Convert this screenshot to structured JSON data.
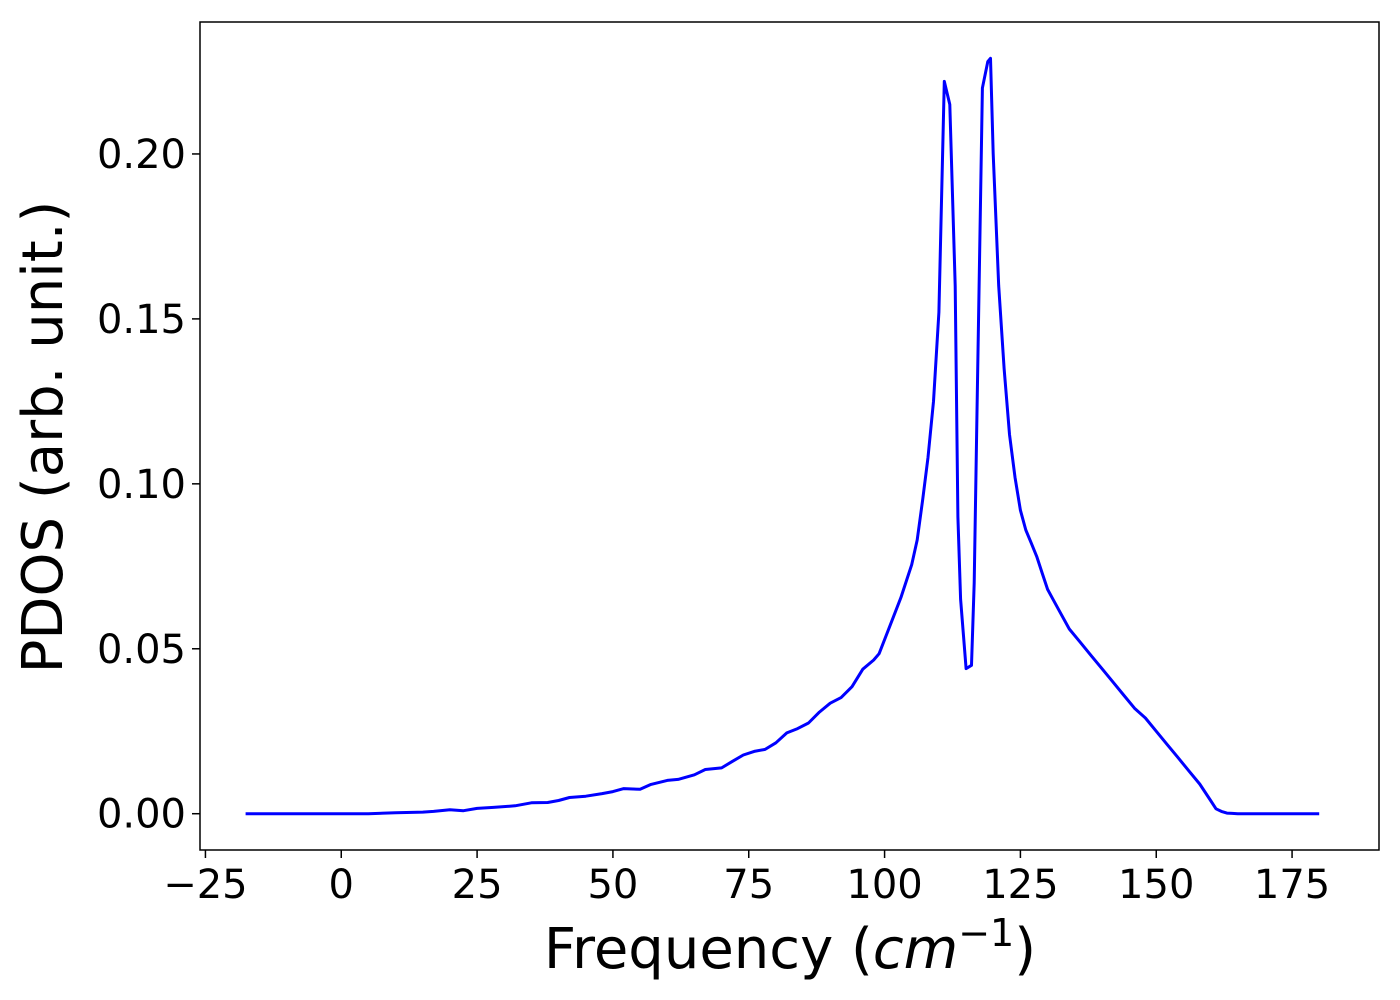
{
  "chart_data": {
    "type": "line",
    "xlabel": {
      "prefix": "Frequency (",
      "unit": "cm",
      "exponent": "−1",
      "suffix": ")"
    },
    "ylabel": "PDOS (arb. unit.)",
    "xlim": [
      -26,
      191
    ],
    "ylim": [
      -0.011,
      0.24
    ],
    "xticks": [
      -25,
      0,
      25,
      50,
      75,
      100,
      125,
      150,
      175
    ],
    "xtick_labels": [
      "−25",
      "0",
      "25",
      "50",
      "75",
      "100",
      "125",
      "150",
      "175"
    ],
    "yticks": [
      0.0,
      0.05,
      0.1,
      0.15,
      0.2
    ],
    "ytick_labels": [
      "0.00",
      "0.05",
      "0.10",
      "0.15",
      "0.20"
    ],
    "grid": false,
    "series": [
      {
        "color": "#0000ff",
        "x": [
          -17.6,
          5,
          10,
          15,
          17,
          20,
          22.5,
          25,
          28,
          32,
          35,
          38,
          40,
          42,
          45,
          48,
          50,
          52,
          55,
          57,
          60,
          62,
          65,
          67,
          70,
          72,
          74,
          76,
          78,
          80,
          82,
          84,
          86,
          88,
          90,
          92,
          94,
          96,
          98,
          99,
          101,
          103,
          104,
          105,
          106,
          107,
          108,
          109,
          110,
          111,
          112,
          113,
          113.5,
          114,
          115,
          116,
          116.5,
          117,
          118,
          119,
          119.5,
          120,
          121,
          122,
          123,
          124,
          125,
          126,
          127,
          128,
          129,
          130,
          131,
          132,
          134,
          136,
          138,
          140,
          142,
          144,
          146,
          148,
          150,
          152,
          154,
          156,
          158,
          160,
          161,
          162,
          163,
          164,
          165,
          166,
          168,
          180
        ],
        "y": [
          0.0,
          0.0,
          0.0003,
          0.0005,
          0.0007,
          0.0012,
          0.0009,
          0.0016,
          0.0019,
          0.0024,
          0.0033,
          0.0034,
          0.004,
          0.0049,
          0.0053,
          0.0061,
          0.0067,
          0.0076,
          0.0074,
          0.0089,
          0.0101,
          0.0104,
          0.0118,
          0.0134,
          0.0139,
          0.0159,
          0.0178,
          0.0189,
          0.0195,
          0.0215,
          0.0245,
          0.0258,
          0.0275,
          0.0308,
          0.0335,
          0.0352,
          0.0385,
          0.0438,
          0.0466,
          0.0485,
          0.057,
          0.0655,
          0.0705,
          0.0755,
          0.083,
          0.095,
          0.108,
          0.125,
          0.152,
          0.222,
          0.215,
          0.16,
          0.09,
          0.065,
          0.044,
          0.045,
          0.07,
          0.12,
          0.22,
          0.228,
          0.229,
          0.2,
          0.16,
          0.135,
          0.115,
          0.102,
          0.092,
          0.086,
          0.082,
          0.078,
          0.073,
          0.068,
          0.065,
          0.062,
          0.056,
          0.052,
          0.048,
          0.044,
          0.04,
          0.036,
          0.032,
          0.029,
          0.025,
          0.021,
          0.017,
          0.013,
          0.009,
          0.004,
          0.0015,
          0.0007,
          0.0002,
          0.0001,
          0.0,
          0.0,
          0.0,
          0.0
        ]
      }
    ]
  }
}
